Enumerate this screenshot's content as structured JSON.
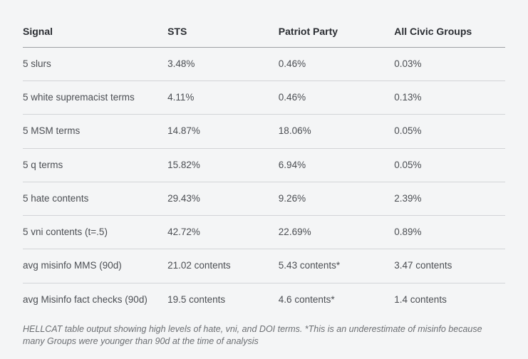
{
  "columns": [
    {
      "label": "Signal",
      "class": "col-signal"
    },
    {
      "label": "STS",
      "class": "col-sts"
    },
    {
      "label": "Patriot Party",
      "class": "col-patriot"
    },
    {
      "label": "All Civic Groups",
      "class": "col-civic"
    }
  ],
  "rows": [
    {
      "signal": "5 slurs",
      "sts": "3.48%",
      "patriot": "0.46%",
      "civic": "0.03%"
    },
    {
      "signal": "5 white supremacist terms",
      "sts": "4.11%",
      "patriot": "0.46%",
      "civic": "0.13%"
    },
    {
      "signal": "5 MSM terms",
      "sts": "14.87%",
      "patriot": "18.06%",
      "civic": "0.05%"
    },
    {
      "signal": "5 q terms",
      "sts": "15.82%",
      "patriot": "6.94%",
      "civic": "0.05%"
    },
    {
      "signal": "5 hate contents",
      "sts": "29.43%",
      "patriot": "9.26%",
      "civic": "2.39%"
    },
    {
      "signal": "5 vni contents (t=.5)",
      "sts": "42.72%",
      "patriot": "22.69%",
      "civic": "0.89%"
    },
    {
      "signal": "avg misinfo MMS (90d)",
      "sts": "21.02 contents",
      "patriot": "5.43 contents*",
      "civic": "3.47 contents"
    },
    {
      "signal": "avg Misinfo fact checks (90d)",
      "sts": "19.5 contents",
      "patriot": "4.6 contents*",
      "civic": "1.4 contents"
    }
  ],
  "caption": "HELLCAT table output showing high levels of hate, vni, and DOI terms. *This is an underestimate of misinfo because many Groups were younger than 90d at the time of analysis"
}
